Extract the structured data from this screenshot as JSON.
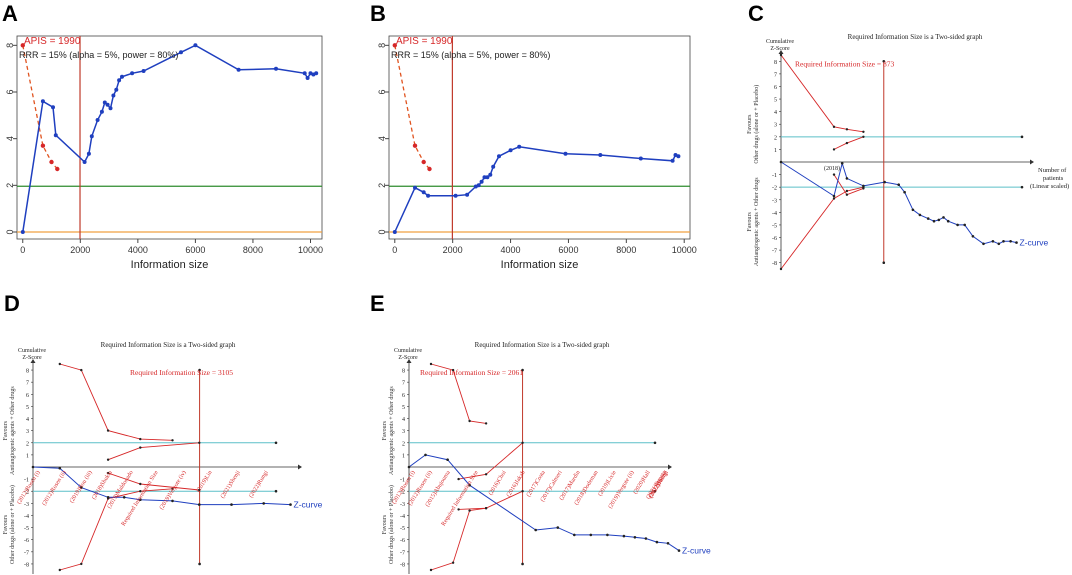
{
  "figure": {
    "panels": [
      "A",
      "B",
      "C",
      "D",
      "E"
    ]
  },
  "colors": {
    "z_curve": "#1f3fbf",
    "boundary": "#d62728",
    "monitoring": "#e0531f",
    "ris_line": "#c0392b",
    "z_threshold": "#2e8b2e",
    "zero_line": "#f0a040",
    "cyan_line": "#5bbfc8",
    "axis": "#333333"
  },
  "chart_data": [
    {
      "panel": "A",
      "type": "line",
      "xlabel": "Information size",
      "xticks": [
        0,
        2000,
        4000,
        6000,
        8000,
        10000
      ],
      "yticks": [
        0,
        2,
        4,
        6,
        8
      ],
      "xlim": [
        -200,
        10400
      ],
      "ylim": [
        -0.3,
        8.4
      ],
      "ris_label": "APIS = 1990",
      "ris_x": 1990,
      "legend_text": "RRR = 15% (alpha = 5%, power = 80%)",
      "z_threshold": 1.96,
      "z_curve": {
        "x": [
          0,
          700,
          1050,
          1150,
          2150,
          2300,
          2400,
          2600,
          2750,
          2850,
          2950,
          3050,
          3150,
          3250,
          3350,
          3450,
          3800,
          4200,
          5500,
          6000,
          7500,
          8800,
          9800,
          9900,
          10000,
          10100,
          10200
        ],
        "y": [
          0,
          5.6,
          5.35,
          4.15,
          3.0,
          3.35,
          4.1,
          4.8,
          5.15,
          5.55,
          5.45,
          5.3,
          5.85,
          6.1,
          6.5,
          6.65,
          6.8,
          6.9,
          7.7,
          8.0,
          6.95,
          7.0,
          6.8,
          6.6,
          6.8,
          6.75,
          6.8
        ]
      },
      "monitoring_boundary": {
        "x": [
          0,
          700,
          1000,
          1200
        ],
        "y": [
          8.0,
          3.7,
          3.0,
          2.7
        ]
      }
    },
    {
      "panel": "B",
      "type": "line",
      "xlabel": "Information size",
      "xticks": [
        0,
        2000,
        4000,
        6000,
        8000,
        10000
      ],
      "yticks": [
        0,
        2,
        4,
        6,
        8
      ],
      "xlim": [
        -200,
        10200
      ],
      "ylim": [
        -0.3,
        8.4
      ],
      "ris_label": "APIS = 1990",
      "ris_x": 1990,
      "legend_text": "RRR = 15% (alpha = 5%, power = 80%)",
      "z_threshold": 1.96,
      "z_curve": {
        "x": [
          0,
          700,
          1000,
          1150,
          2100,
          2500,
          2800,
          2900,
          3000,
          3100,
          3200,
          3300,
          3400,
          3600,
          4000,
          4300,
          5900,
          7100,
          8500,
          9600,
          9700,
          9800
        ],
        "y": [
          0,
          1.9,
          1.7,
          1.55,
          1.55,
          1.6,
          1.95,
          2.0,
          2.15,
          2.35,
          2.35,
          2.45,
          2.8,
          3.25,
          3.5,
          3.65,
          3.35,
          3.3,
          3.15,
          3.05,
          3.3,
          3.25
        ]
      },
      "monitoring_boundary": {
        "x": [
          0,
          700,
          1000,
          1200
        ],
        "y": [
          8.0,
          3.7,
          3.0,
          2.7
        ]
      }
    },
    {
      "panel": "C",
      "type": "line",
      "title": "Required Information Size is a Two-sided graph",
      "ylabel_top": "Cumulative",
      "ylabel_bottom": "Z-Score",
      "ris_label": "Required Information Size = 873",
      "x_axis_label_line1": "Number of",
      "x_axis_label_line2": "patients",
      "x_axis_label_line3": "(Linear scaled)",
      "favours_top": [
        "Favours",
        "Other drugs (alone or + Placebo)"
      ],
      "favours_bottom": [
        "Favours",
        "Antiangiogenic agents + Other drugs"
      ],
      "curve_label": "Z-curve",
      "trial_label": "(2018)",
      "yticks": [
        8,
        7,
        6,
        5,
        4,
        3,
        2,
        1,
        -1,
        -2,
        -3,
        -4,
        -5,
        -6,
        -7,
        -8
      ],
      "ris_x": 873,
      "xmax": 2200,
      "z_curve": {
        "x": [
          0,
          450,
          520,
          560,
          700,
          880,
          1000,
          1050,
          1120,
          1180,
          1250,
          1300,
          1340,
          1380,
          1420,
          1500,
          1560,
          1630,
          1720,
          1800,
          1850,
          1890,
          1950,
          2000
        ],
        "y": [
          0,
          -2.7,
          -0.1,
          -1.3,
          -1.9,
          -1.6,
          -1.8,
          -2.4,
          -3.8,
          -4.2,
          -4.5,
          -4.7,
          -4.6,
          -4.4,
          -4.7,
          -5.0,
          -5.0,
          -5.9,
          -6.5,
          -6.3,
          -6.5,
          -6.3,
          -6.3,
          -6.4
        ]
      },
      "upper_futility": {
        "x": [
          450,
          560,
          700
        ],
        "y": [
          1.0,
          1.5,
          2.0
        ]
      },
      "lower_futility": {
        "x": [
          450,
          560,
          700
        ],
        "y": [
          -1.0,
          -2.6,
          -2.1
        ]
      },
      "upper_efficacy": {
        "x": [
          0,
          450,
          560,
          700
        ],
        "y": [
          8.5,
          2.8,
          2.6,
          2.4
        ]
      },
      "lower_efficacy": {
        "x": [
          0,
          450,
          560,
          700
        ],
        "y": [
          -8.5,
          -2.9,
          -2.3,
          -2.0
        ]
      }
    },
    {
      "panel": "D",
      "type": "line",
      "title": "Required Information Size is a Two-sided graph",
      "ylabel_top": "Cumulative",
      "ylabel_bottom": "Z-Score",
      "ris_label": "Required Information Size = 3105",
      "favours_top": [
        "Favours",
        "Antiangiogenic agents + Other drugs"
      ],
      "favours_bottom": [
        "Favours",
        "Other drugs (alone or + Placebo)"
      ],
      "curve_label": "Z-curve",
      "trial_labels": [
        "(2012)Rosen (i)",
        "(2012)Rosen (ii)",
        "(2019)Hou (iii)",
        "(2018)Shukla",
        "(2019)Maldonado",
        "Required Information Size",
        "(2019)Vergote (iv)",
        "(2019)Lin",
        "(2021)Shenji",
        "(2022)Rungi"
      ],
      "yticks": [
        8,
        7,
        6,
        5,
        4,
        3,
        2,
        1,
        -1,
        -2,
        -3,
        -4,
        -5,
        -6,
        -7,
        -8
      ],
      "ris_x": 3105,
      "xmax": 5200,
      "z_curve": {
        "x": [
          0,
          500,
          900,
          1400,
          1700,
          2000,
          2600,
          3100,
          3700,
          4300,
          4800
        ],
        "y": [
          0,
          -0.1,
          -1.7,
          -2.5,
          -2.5,
          -2.7,
          -2.8,
          -3.1,
          -3.1,
          -3.0,
          -3.1
        ]
      },
      "upper_futility": {
        "x": [
          1400,
          2000,
          3100
        ],
        "y": [
          0.6,
          1.6,
          2.0
        ]
      },
      "lower_futility": {
        "x": [
          1400,
          2000,
          3100
        ],
        "y": [
          -0.5,
          -1.4,
          -1.9
        ]
      },
      "upper_efficacy": {
        "x": [
          500,
          900,
          1400,
          2000,
          2600
        ],
        "y": [
          8.5,
          8.0,
          3.0,
          2.3,
          2.2
        ]
      },
      "lower_efficacy": {
        "x": [
          500,
          900,
          1400,
          2000,
          2600
        ],
        "y": [
          -8.5,
          -8.0,
          -2.6,
          -2.0,
          -1.8
        ]
      }
    },
    {
      "panel": "E",
      "type": "line",
      "title": "Required Information Size is a Two-sided graph",
      "ylabel_top": "Cumulative",
      "ylabel_bottom": "Z-Score",
      "ris_label": "Required Information Size = 2061",
      "favours_top": [
        "Favours",
        "Antiangiogenic agents + Other drugs"
      ],
      "favours_bottom": [
        "Favours",
        "Other drugs (alone or + Placebo)"
      ],
      "curve_label": "Z-curve",
      "trial_labels": [
        "(2012)Rosen (i)",
        "(2012)Rosen (ii)",
        "(2015)Abujouma",
        "Required Information Size",
        "(2016)Choi",
        "(2016)Jakab",
        "(2017)Costa",
        "(2017)Calmeri",
        "(2017)Mardin",
        "(2018)Dodeman",
        "(2019)Lixie",
        "(2019)Vergote (ii)",
        "(2020)Hall",
        "(2021)Pupeta",
        "(2022)Shenji",
        "(2022)Rungi"
      ],
      "yticks": [
        8,
        7,
        6,
        5,
        4,
        3,
        2,
        1,
        -1,
        -2,
        -3,
        -4,
        -5,
        -6,
        -7,
        -8
      ],
      "ris_x": 2061,
      "xmax": 5100,
      "z_curve": {
        "x": [
          0,
          300,
          700,
          1100,
          2300,
          2700,
          3000,
          3300,
          3600,
          3900,
          4100,
          4300,
          4500,
          4700,
          4900
        ],
        "y": [
          0,
          1.0,
          0.6,
          -1.5,
          -5.2,
          -5.0,
          -5.6,
          -5.6,
          -5.6,
          -5.7,
          -5.8,
          -5.9,
          -6.2,
          -6.3,
          -6.9
        ]
      },
      "upper_futility": {
        "x": [
          900,
          1400,
          2061
        ],
        "y": [
          -1.0,
          -0.6,
          2.0
        ]
      },
      "lower_futility": {
        "x": [
          900,
          1400,
          2061
        ],
        "y": [
          -3.5,
          -3.4,
          -2.0
        ]
      },
      "upper_efficacy": {
        "x": [
          400,
          800,
          1100,
          1400
        ],
        "y": [
          8.5,
          8.0,
          3.8,
          3.6
        ]
      },
      "lower_efficacy": {
        "x": [
          400,
          800,
          1100,
          1400
        ],
        "y": [
          -8.5,
          -7.9,
          -3.6,
          -3.4
        ]
      }
    }
  ]
}
